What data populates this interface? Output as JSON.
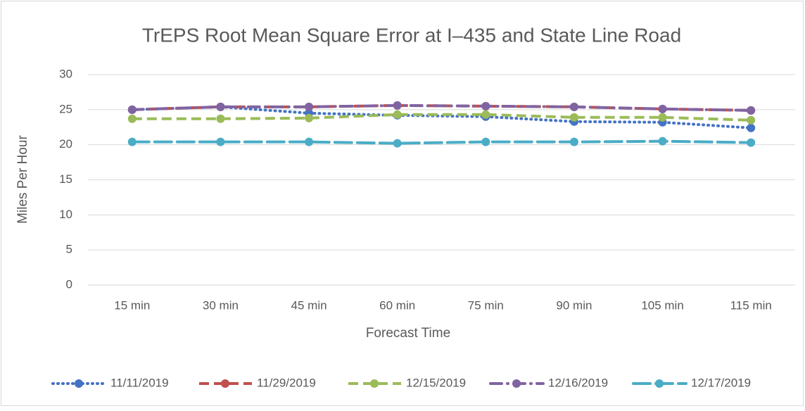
{
  "chart_data": {
    "type": "line",
    "title": "TrEPS Root Mean Square Error at I–435 and State Line Road",
    "x_label": "Forecast Time",
    "y_label": "Miles Per Hour",
    "categories": [
      "15 min",
      "30 min",
      "45 min",
      "60 min",
      "75 min",
      "90 min",
      "105 min",
      "115 min"
    ],
    "series": [
      {
        "name": "11/11/2019",
        "color": "#4472c4",
        "line_style": "dotted",
        "values": [
          25.0,
          25.4,
          24.5,
          24.2,
          24.0,
          23.3,
          23.2,
          22.4
        ]
      },
      {
        "name": "11/29/2019",
        "color": "#c0504d",
        "line_style": "dashed",
        "values": [
          25.0,
          25.4,
          25.4,
          25.6,
          25.5,
          25.4,
          25.1,
          24.9
        ]
      },
      {
        "name": "12/15/2019",
        "color": "#9bbb59",
        "line_style": "dashed",
        "values": [
          23.7,
          23.7,
          23.8,
          24.3,
          24.3,
          23.9,
          23.9,
          23.5
        ]
      },
      {
        "name": "12/16/2019",
        "color": "#8064a2",
        "line_style": "dash-dot",
        "values": [
          25.0,
          25.4,
          25.4,
          25.6,
          25.5,
          25.4,
          25.1,
          24.9
        ]
      },
      {
        "name": "12/17/2019",
        "color": "#4bacc6",
        "line_style": "long-dash",
        "values": [
          20.4,
          20.4,
          20.4,
          20.2,
          20.4,
          20.4,
          20.5,
          20.3
        ]
      }
    ],
    "ylim": [
      0,
      30
    ],
    "yticks": [
      0,
      5,
      10,
      15,
      20,
      25,
      30
    ],
    "grid": true,
    "legend": "bottom"
  }
}
